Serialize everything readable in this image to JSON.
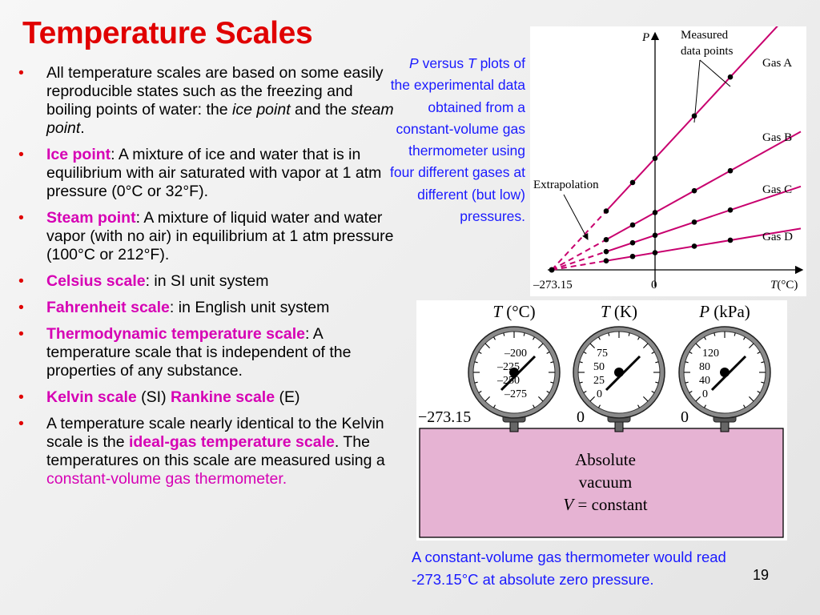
{
  "slide": {
    "title": "Temperature Scales",
    "page_number": "19"
  },
  "bullets": [
    {
      "parts": [
        {
          "text": "All temperature scales are based on some easily reproducible states such as the freezing and boiling points of water: the "
        },
        {
          "text": "ice point",
          "style": "italic"
        },
        {
          "text": " and the "
        },
        {
          "text": "steam point",
          "style": "italic"
        },
        {
          "text": "."
        }
      ]
    },
    {
      "parts": [
        {
          "text": "Ice point",
          "style": "term"
        },
        {
          "text": ": A mixture of ice and water that is in equilibrium with air saturated with vapor at 1 atm pressure (0°C or 32°F)."
        }
      ]
    },
    {
      "parts": [
        {
          "text": "Steam point",
          "style": "term"
        },
        {
          "text": ": A mixture of liquid water and water vapor (with no air) in equilibrium at 1 atm pressure (100°C or 212°F)."
        }
      ]
    },
    {
      "parts": [
        {
          "text": "Celsius scale",
          "style": "term"
        },
        {
          "text": ": in SI unit system"
        }
      ]
    },
    {
      "parts": [
        {
          "text": "Fahrenheit scale",
          "style": "term"
        },
        {
          "text": ": in English unit system"
        }
      ]
    },
    {
      "parts": [
        {
          "text": "Thermodynamic temperature scale",
          "style": "term"
        },
        {
          "text": ": A temperature scale that is independent of the properties of any substance."
        }
      ]
    },
    {
      "parts": [
        {
          "text": "Kelvin scale",
          "style": "term"
        },
        {
          "text": " (SI) "
        },
        {
          "text": "Rankine scale",
          "style": "term"
        },
        {
          "text": " (E)"
        }
      ]
    },
    {
      "parts": [
        {
          "text": "A temperature scale nearly identical to the Kelvin scale is the "
        },
        {
          "text": "ideal-gas temperature scale",
          "style": "term"
        },
        {
          "text": ". The temperatures on this scale are measured using a "
        },
        {
          "text": "constant-volume gas thermometer.",
          "style": "mag"
        }
      ]
    }
  ],
  "caption_top": {
    "p": "P",
    "mid": " versus ",
    "t": "T",
    "rest": " plots of the experimental data obtained from a constant-volume gas thermometer using four different gases at different (but low) pressures."
  },
  "caption_bottom": "A constant-volume gas thermometer would read -273.15°C at absolute zero pressure.",
  "plot": {
    "y_label": "P",
    "x_label_t": "T",
    "x_label_unit": "(°C)",
    "x_tick_left": "–273.15",
    "x_tick_zero": "0",
    "measured_label_1": "Measured",
    "measured_label_2": "data points",
    "extrapolation_label": "Extrapolation",
    "gases": [
      "Gas A",
      "Gas B",
      "Gas C",
      "Gas D"
    ],
    "line_color": "#c8006e"
  },
  "gauges": [
    {
      "label_sym": "T",
      "label_unit": " (°C)",
      "ticks": [
        "–200",
        "–225",
        "–250",
        "–275"
      ],
      "reading": "−273.15"
    },
    {
      "label_sym": "T",
      "label_unit": " (K)",
      "ticks": [
        "75",
        "50",
        "25",
        "0"
      ],
      "reading": "0"
    },
    {
      "label_sym": "P",
      "label_unit": " (kPa)",
      "ticks": [
        "120",
        "80",
        "40",
        "0"
      ],
      "reading": "0"
    }
  ],
  "vessel": {
    "line1": "Absolute",
    "line2": "vacuum",
    "v": "V",
    "line3_rest": " = constant",
    "fill": "#e6b3d3"
  }
}
